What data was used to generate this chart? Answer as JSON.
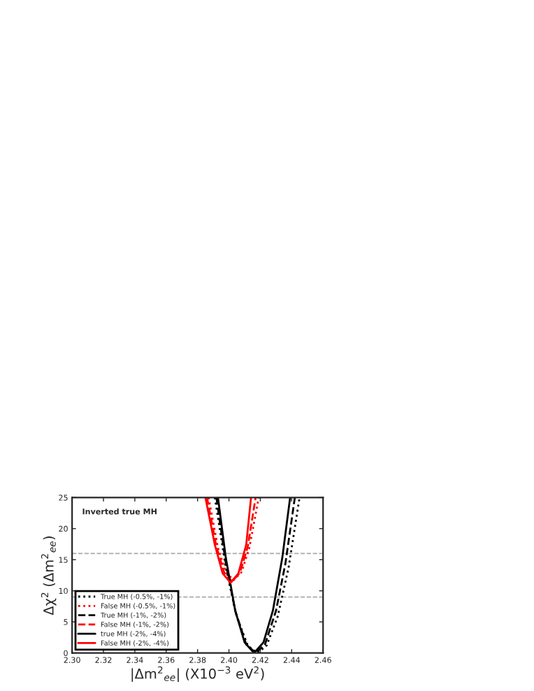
{
  "chart_data": {
    "type": "line",
    "xlabel": "|Δm$^{2}$$_{ee}$| (X10$^{−3}$ eV$^{2}$)",
    "ylabel": "Δχ$^{2}$ (Δm$^{2}$$_{ee}$)",
    "annotations": [
      "Inverted true MH"
    ],
    "xlim": [
      2.3,
      2.46
    ],
    "xticks": [
      {
        "value": 2.3,
        "label": "2.30"
      },
      {
        "value": 2.32,
        "label": "2.32"
      },
      {
        "value": 2.34,
        "label": "2.34"
      },
      {
        "value": 2.36,
        "label": "2.36"
      },
      {
        "value": 2.38,
        "label": "2.38"
      },
      {
        "value": 2.4,
        "label": "2.40"
      },
      {
        "value": 2.42,
        "label": "2.42"
      },
      {
        "value": 2.44,
        "label": "2.44"
      },
      {
        "value": 2.46,
        "label": "2.46"
      }
    ],
    "ylim": [
      0,
      25
    ],
    "yticks": [
      0,
      5,
      10,
      15,
      20,
      25
    ],
    "grid": false,
    "legend": "bottom left",
    "ref_lines": [
      {
        "axis": "y",
        "value": 16,
        "color": "#aaaaaa",
        "line_style": "dashed"
      },
      {
        "axis": "y",
        "value": 9,
        "color": "#aaaaaa",
        "line_style": "dashed"
      }
    ],
    "series": [
      {
        "name": "True MH (-0.5%, -1%)",
        "color": "#000000",
        "line_style": "dotted",
        "x": [
          2.391,
          2.398,
          2.405,
          2.412,
          2.418,
          2.424,
          2.431,
          2.438,
          2.445
        ],
        "values": [
          25,
          13.7,
          5.8,
          1.2,
          0,
          1.2,
          5.8,
          13.7,
          25
        ]
      },
      {
        "name": "False MH (-0.5%, -1%)",
        "color": "#ff0000",
        "line_style": "dotted",
        "x": [
          2.387,
          2.393,
          2.398,
          2.403,
          2.408,
          2.413,
          2.419
        ],
        "values": [
          25,
          16.9,
          13.0,
          11.7,
          13.0,
          16.9,
          25
        ]
      },
      {
        "name": "True MH (-1%, -2%)",
        "color": "#000000",
        "line_style": "dashed",
        "x": [
          2.392,
          2.398,
          2.404,
          2.411,
          2.417,
          2.423,
          2.43,
          2.436,
          2.442
        ],
        "values": [
          25,
          14.4,
          6.8,
          1.4,
          0,
          1.4,
          6.8,
          14.4,
          25
        ]
      },
      {
        "name": "False MH (-1%, -2%)",
        "color": "#ff0000",
        "line_style": "dashed",
        "x": [
          2.386,
          2.392,
          2.397,
          2.402,
          2.407,
          2.412,
          2.417
        ],
        "values": [
          25,
          17.1,
          12.9,
          11.5,
          12.9,
          17.1,
          25
        ]
      },
      {
        "name": "true MH (-2%, -4%)",
        "color": "#000000",
        "line_style": "solid",
        "x": [
          2.393,
          2.398,
          2.404,
          2.41,
          2.416,
          2.422,
          2.428,
          2.434,
          2.439
        ],
        "values": [
          25,
          15.3,
          6.8,
          1.7,
          0,
          1.7,
          6.8,
          15.3,
          25
        ]
      },
      {
        "name": "False MH (-2%, -4%)",
        "color": "#ff0000",
        "line_style": "solid",
        "x": [
          2.385,
          2.391,
          2.396,
          2.401,
          2.406,
          2.411,
          2.414
        ],
        "values": [
          25,
          17.4,
          12.8,
          11.3,
          12.8,
          17.4,
          24.8
        ]
      }
    ]
  }
}
